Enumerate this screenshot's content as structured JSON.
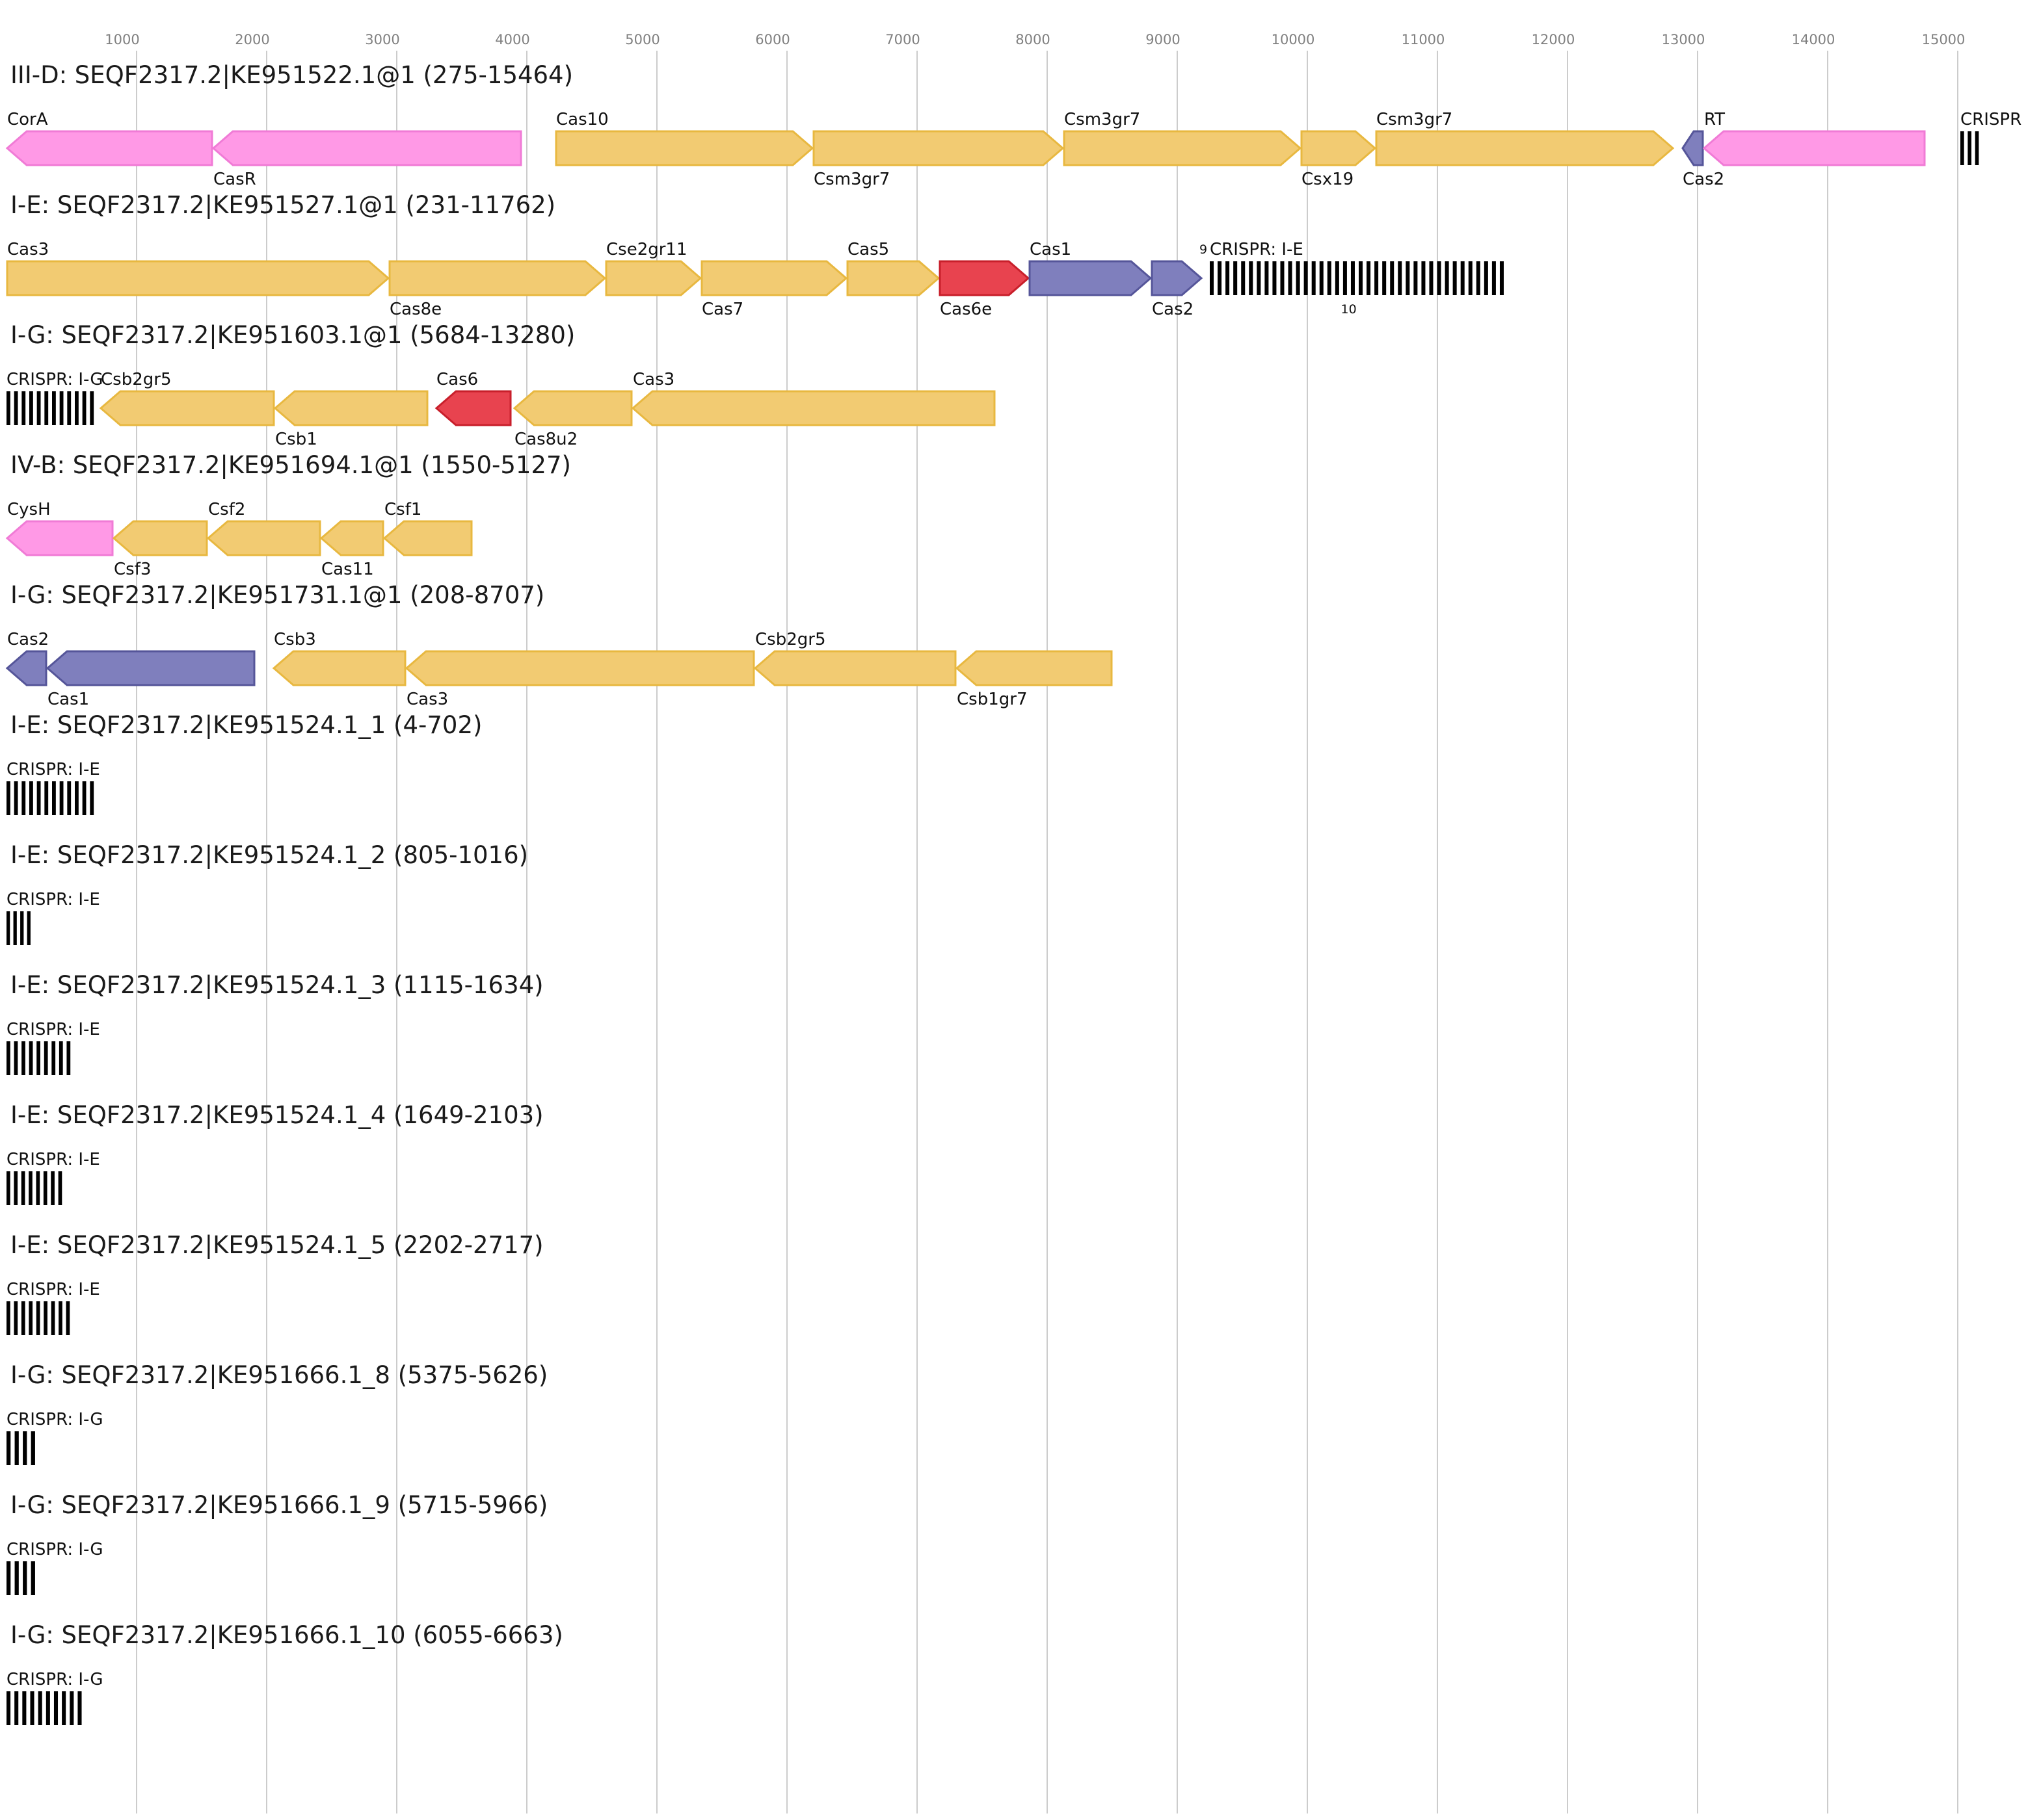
{
  "axis": {
    "ticks": [
      1000,
      2000,
      3000,
      4000,
      5000,
      6000,
      7000,
      8000,
      9000,
      10000,
      11000,
      12000,
      13000,
      14000,
      15000
    ],
    "tick_labels": [
      "1000",
      "2000",
      "3000",
      "4000",
      "5000",
      "6000",
      "7000",
      "8000",
      "9000",
      "10000",
      "11000",
      "12000",
      "13000",
      "14000",
      "15000"
    ]
  },
  "colors": {
    "cas_effector": "#f2cb72",
    "cas_effector_stroke": "#e8b840",
    "cas6": "#e8434f",
    "cas6_stroke": "#c81f2b",
    "adaptation": "#7f7fbd",
    "adaptation_stroke": "#555599",
    "accessory": "#ff99e6",
    "accessory_stroke": "#f07bd6",
    "crispr": "#000000",
    "grid": "#cccccc"
  },
  "tracks": [
    {
      "title": "III-D: SEQF2317.2|KE951522.1@1 (275-15464)",
      "genes": [
        {
          "label": "CorA",
          "start": 0,
          "end": 1585,
          "strand": -1,
          "type": "accessory",
          "label_pos": "above"
        },
        {
          "label": "CasR",
          "start": 1585,
          "end": 3960,
          "strand": -1,
          "type": "accessory",
          "label_pos": "below"
        },
        {
          "label": "Cas10",
          "start": 4220,
          "end": 6200,
          "strand": 1,
          "type": "cas_effector",
          "label_pos": "above"
        },
        {
          "label": "Csm3gr7",
          "start": 6200,
          "end": 8125,
          "strand": 1,
          "type": "cas_effector",
          "label_pos": "below"
        },
        {
          "label": "Csm3gr7",
          "start": 8125,
          "end": 9950,
          "strand": 1,
          "type": "cas_effector",
          "label_pos": "above"
        },
        {
          "label": "Csx19",
          "start": 9950,
          "end": 10525,
          "strand": 1,
          "type": "cas_effector",
          "label_pos": "below"
        },
        {
          "label": "Csm3gr7",
          "start": 10525,
          "end": 12815,
          "strand": 1,
          "type": "cas_effector",
          "label_pos": "above"
        },
        {
          "label": "Cas2",
          "start": 12880,
          "end": 13045,
          "strand": -1,
          "type": "adaptation",
          "label_pos": "below"
        },
        {
          "label": "RT",
          "start": 13045,
          "end": 14750,
          "strand": -1,
          "type": "accessory",
          "label_pos": "above"
        }
      ],
      "crisprs": [
        {
          "label": "CRISPR",
          "start": 15020,
          "end": 15190,
          "repeats": 3
        }
      ]
    },
    {
      "title": "I-E: SEQF2317.2|KE951527.1@1 (231-11762)",
      "genes": [
        {
          "label": "Cas3",
          "start": 0,
          "end": 2940,
          "strand": 1,
          "type": "cas_effector",
          "label_pos": "above"
        },
        {
          "label": "Cas8e",
          "start": 2940,
          "end": 4605,
          "strand": 1,
          "type": "cas_effector",
          "label_pos": "below"
        },
        {
          "label": "Cse2gr11",
          "start": 4605,
          "end": 5340,
          "strand": 1,
          "type": "cas_effector",
          "label_pos": "above"
        },
        {
          "label": "Cas7",
          "start": 5340,
          "end": 6460,
          "strand": 1,
          "type": "cas_effector",
          "label_pos": "below"
        },
        {
          "label": "Cas5",
          "start": 6460,
          "end": 7170,
          "strand": 1,
          "type": "cas_effector",
          "label_pos": "above"
        },
        {
          "label": "Cas6e",
          "start": 7170,
          "end": 7860,
          "strand": 1,
          "type": "cas6",
          "label_pos": "below"
        },
        {
          "label": "Cas1",
          "start": 7860,
          "end": 8800,
          "strand": 1,
          "type": "adaptation",
          "label_pos": "above"
        },
        {
          "label": "Cas2",
          "start": 8800,
          "end": 9190,
          "strand": 1,
          "type": "adaptation",
          "label_pos": "below"
        }
      ],
      "crisprs": [
        {
          "label": "CRISPR: I-E",
          "start": 9250,
          "end": 11540,
          "repeats": 38,
          "num_left": "9",
          "num_below": "10"
        }
      ]
    },
    {
      "title": "I-G: SEQF2317.2|KE951603.1@1 (5684-13280)",
      "genes": [
        {
          "label": "Csb2gr5",
          "start": 720,
          "end": 2060,
          "strand": -1,
          "type": "cas_effector",
          "label_pos": "above"
        },
        {
          "label": "Csb1",
          "start": 2060,
          "end": 3240,
          "strand": -1,
          "type": "cas_effector",
          "label_pos": "below"
        },
        {
          "label": "Cas6",
          "start": 3300,
          "end": 3880,
          "strand": -1,
          "type": "cas6",
          "label_pos": "above"
        },
        {
          "label": "Cas8u2",
          "start": 3900,
          "end": 4810,
          "strand": -1,
          "type": "cas_effector",
          "label_pos": "below"
        },
        {
          "label": "Cas3",
          "start": 4810,
          "end": 7600,
          "strand": -1,
          "type": "cas_effector",
          "label_pos": "above"
        }
      ],
      "crisprs": [
        {
          "label": "CRISPR: I-G",
          "start": 0,
          "end": 700,
          "repeats": 12
        }
      ]
    },
    {
      "title": "IV-B: SEQF2317.2|KE951694.1@1 (1550-5127)",
      "genes": [
        {
          "label": "CysH",
          "start": 0,
          "end": 820,
          "strand": -1,
          "type": "accessory",
          "label_pos": "above"
        },
        {
          "label": "Csf3",
          "start": 820,
          "end": 1545,
          "strand": -1,
          "type": "cas_effector",
          "label_pos": "below"
        },
        {
          "label": "Csf2",
          "start": 1545,
          "end": 2415,
          "strand": -1,
          "type": "cas_effector",
          "label_pos": "above"
        },
        {
          "label": "Cas11",
          "start": 2415,
          "end": 2900,
          "strand": -1,
          "type": "cas_effector",
          "label_pos": "below"
        },
        {
          "label": "Csf1",
          "start": 2900,
          "end": 3580,
          "strand": -1,
          "type": "cas_effector",
          "label_pos": "above"
        }
      ],
      "crisprs": []
    },
    {
      "title": "I-G: SEQF2317.2|KE951731.1@1 (208-8707)",
      "genes": [
        {
          "label": "Cas2",
          "start": 0,
          "end": 310,
          "strand": -1,
          "type": "adaptation",
          "label_pos": "above"
        },
        {
          "label": "Cas1",
          "start": 310,
          "end": 1910,
          "strand": -1,
          "type": "adaptation",
          "label_pos": "below"
        },
        {
          "label": "Csb3",
          "start": 2050,
          "end": 3070,
          "strand": -1,
          "type": "cas_effector",
          "label_pos": "above"
        },
        {
          "label": "Cas3",
          "start": 3070,
          "end": 5750,
          "strand": -1,
          "type": "cas_effector",
          "label_pos": "below"
        },
        {
          "label": "Csb2gr5",
          "start": 5750,
          "end": 7300,
          "strand": -1,
          "type": "cas_effector",
          "label_pos": "above"
        },
        {
          "label": "Csb1gr7",
          "start": 7300,
          "end": 8500,
          "strand": -1,
          "type": "cas_effector",
          "label_pos": "below"
        }
      ],
      "crisprs": []
    },
    {
      "title": "I-E: SEQF2317.2|KE951524.1_1 (4-702)",
      "genes": [],
      "crisprs": [
        {
          "label": "CRISPR: I-E",
          "start": 0,
          "end": 700,
          "repeats": 12
        }
      ]
    },
    {
      "title": "I-E: SEQF2317.2|KE951524.1_2 (805-1016)",
      "genes": [],
      "crisprs": [
        {
          "label": "CRISPR: I-E",
          "start": 0,
          "end": 211,
          "repeats": 4
        }
      ]
    },
    {
      "title": "I-E: SEQF2317.2|KE951524.1_3 (1115-1634)",
      "genes": [],
      "crisprs": [
        {
          "label": "CRISPR: I-E",
          "start": 0,
          "end": 520,
          "repeats": 9
        }
      ]
    },
    {
      "title": "I-E: SEQF2317.2|KE951524.1_4 (1649-2103)",
      "genes": [],
      "crisprs": [
        {
          "label": "CRISPR: I-E",
          "start": 0,
          "end": 455,
          "repeats": 8
        }
      ]
    },
    {
      "title": "I-E: SEQF2317.2|KE951524.1_5 (2202-2717)",
      "genes": [],
      "crisprs": [
        {
          "label": "CRISPR: I-E",
          "start": 0,
          "end": 515,
          "repeats": 9
        }
      ]
    },
    {
      "title": "I-G: SEQF2317.2|KE951666.1_8 (5375-5626)",
      "genes": [],
      "crisprs": [
        {
          "label": "CRISPR: I-G",
          "start": 0,
          "end": 251,
          "repeats": 4
        }
      ]
    },
    {
      "title": "I-G: SEQF2317.2|KE951666.1_9 (5715-5966)",
      "genes": [],
      "crisprs": [
        {
          "label": "CRISPR: I-G",
          "start": 0,
          "end": 251,
          "repeats": 4
        }
      ]
    },
    {
      "title": "I-G: SEQF2317.2|KE951666.1_10 (6055-6663)",
      "genes": [],
      "crisprs": [
        {
          "label": "CRISPR: I-G",
          "start": 0,
          "end": 608,
          "repeats": 10
        }
      ]
    }
  ]
}
